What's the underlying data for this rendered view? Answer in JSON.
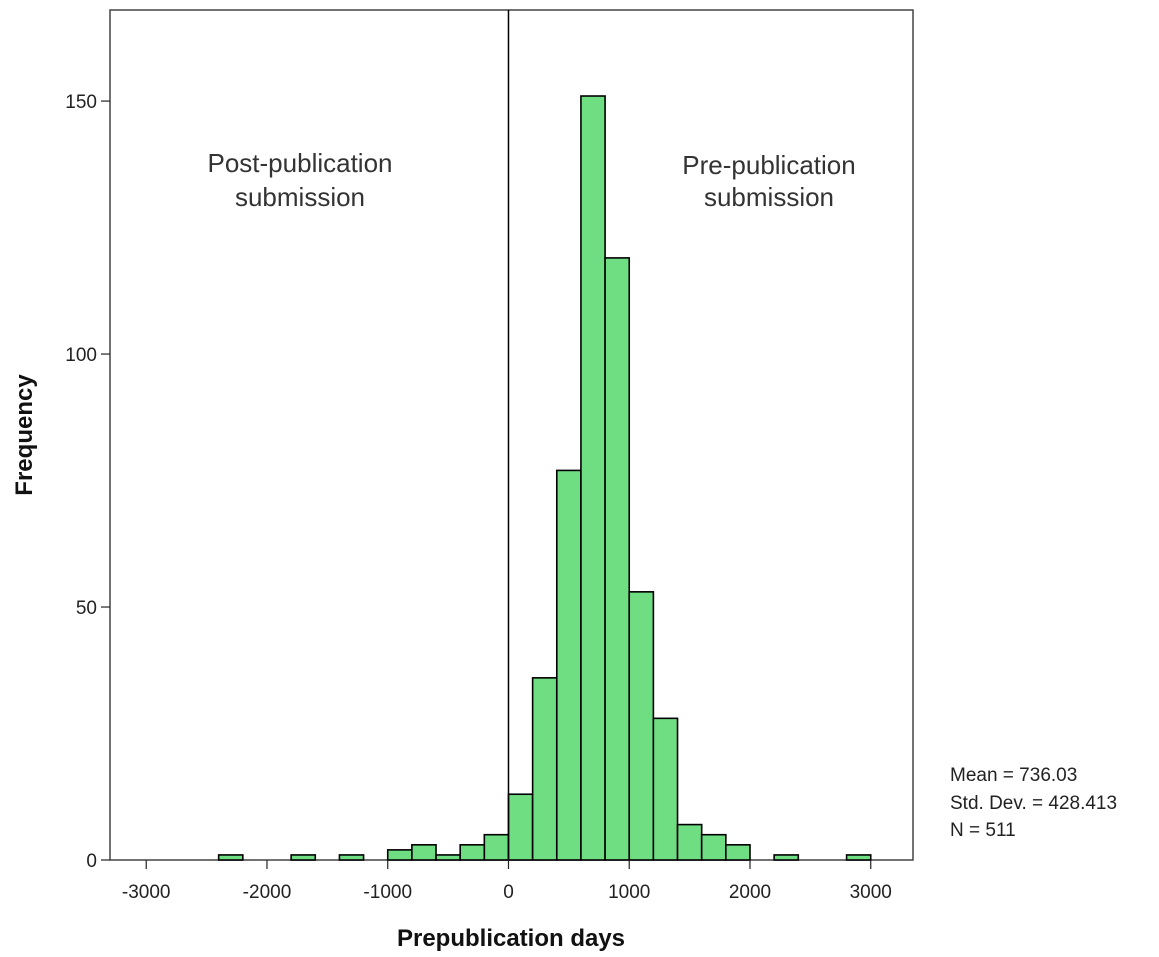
{
  "chart_data": {
    "type": "bar",
    "title": "",
    "xlabel": "Prepublication days",
    "ylabel": "Frequency",
    "xlim": [
      -3300,
      3350
    ],
    "ylim": [
      0,
      168
    ],
    "bin_width": 200,
    "x_ticks": [
      -3000,
      -2000,
      -1000,
      0,
      1000,
      2000,
      3000
    ],
    "y_ticks": [
      0,
      50,
      100,
      150
    ],
    "bins": [
      {
        "start": -2400,
        "count": 1
      },
      {
        "start": -2200,
        "count": 0
      },
      {
        "start": -2000,
        "count": 0
      },
      {
        "start": -1800,
        "count": 1
      },
      {
        "start": -1600,
        "count": 0
      },
      {
        "start": -1400,
        "count": 1
      },
      {
        "start": -1200,
        "count": 0
      },
      {
        "start": -1000,
        "count": 2
      },
      {
        "start": -800,
        "count": 3
      },
      {
        "start": -600,
        "count": 1
      },
      {
        "start": -400,
        "count": 3
      },
      {
        "start": -200,
        "count": 5
      },
      {
        "start": 0,
        "count": 13
      },
      {
        "start": 200,
        "count": 36
      },
      {
        "start": 400,
        "count": 77
      },
      {
        "start": 600,
        "count": 151
      },
      {
        "start": 800,
        "count": 119
      },
      {
        "start": 1000,
        "count": 53
      },
      {
        "start": 1200,
        "count": 28
      },
      {
        "start": 1400,
        "count": 7
      },
      {
        "start": 1600,
        "count": 5
      },
      {
        "start": 1800,
        "count": 3
      },
      {
        "start": 2000,
        "count": 0
      },
      {
        "start": 2200,
        "count": 1
      },
      {
        "start": 2400,
        "count": 0
      },
      {
        "start": 2600,
        "count": 0
      },
      {
        "start": 2800,
        "count": 1
      }
    ],
    "reference_line_x": 0,
    "annotations": [
      {
        "side": "left",
        "lines": [
          "Post-publication",
          "submission"
        ]
      },
      {
        "side": "right",
        "lines": [
          "Pre-publication",
          "submission"
        ]
      }
    ],
    "stats": {
      "mean": "Mean = 736.03",
      "std_dev": "Std. Dev. = 428.413",
      "n": "N = 511"
    },
    "colors": {
      "bar_fill": "#6FDD82",
      "bar_stroke": "#000000",
      "frame": "#444444",
      "reference_line": "#000000"
    },
    "legend": "none",
    "grid": false
  }
}
